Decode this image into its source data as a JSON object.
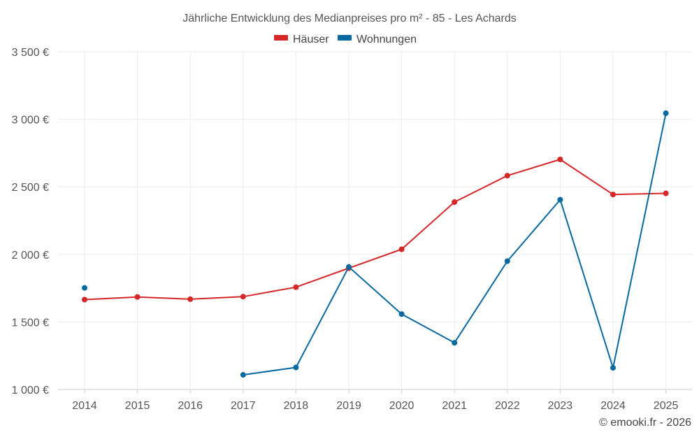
{
  "chart_data": {
    "type": "line",
    "title": "Jährliche Entwicklung des Medianpreises pro m² - 85 - Les Achards",
    "categories": [
      "2014",
      "2015",
      "2016",
      "2017",
      "2018",
      "2019",
      "2020",
      "2021",
      "2022",
      "2023",
      "2024",
      "2025"
    ],
    "ylim": [
      1000,
      3500
    ],
    "yticks": [
      1000,
      1500,
      2000,
      2500,
      3000,
      3500
    ],
    "ytick_labels": [
      "1 000 €",
      "1 500 €",
      "2 000 €",
      "2 500 €",
      "3 000 €",
      "3 500 €"
    ],
    "grid": true,
    "legend_position": "top-center",
    "series": [
      {
        "name": "Häuser",
        "color": "#d62728",
        "values": [
          1665,
          1685,
          1668,
          1687,
          1757,
          1898,
          2038,
          2387,
          2583,
          2703,
          2443,
          2452
        ]
      },
      {
        "name": "Wohnungen",
        "color": "#0868a0",
        "values": [
          1752,
          null,
          null,
          1108,
          1163,
          1907,
          1558,
          1346,
          1950,
          2405,
          1160,
          3045
        ]
      }
    ]
  },
  "credit": "© emooki.fr - 2026"
}
